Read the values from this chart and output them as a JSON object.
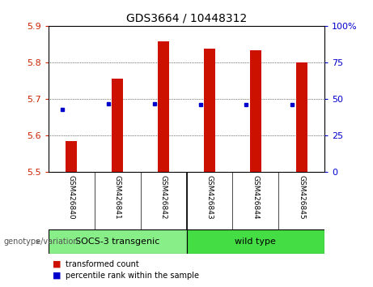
{
  "title": "GDS3664 / 10448312",
  "samples": [
    "GSM426840",
    "GSM426841",
    "GSM426842",
    "GSM426843",
    "GSM426844",
    "GSM426845"
  ],
  "transformed_counts": [
    5.585,
    5.755,
    5.858,
    5.838,
    5.834,
    5.8
  ],
  "percentile_ranks": [
    43,
    47,
    47,
    46,
    46,
    46
  ],
  "y_min": 5.5,
  "y_max": 5.9,
  "y_ticks": [
    5.5,
    5.6,
    5.7,
    5.8,
    5.9
  ],
  "right_y_ticks": [
    0,
    25,
    50,
    75,
    100
  ],
  "right_y_tick_positions": [
    5.5,
    5.6,
    5.7,
    5.8,
    5.9
  ],
  "bar_color": "#cc1100",
  "dot_color": "#0000cc",
  "bar_bottom": 5.5,
  "group_0_label": "SOCS-3 transgenic",
  "group_1_label": "wild type",
  "group_0_color": "#88ee88",
  "group_1_color": "#44dd44",
  "group_label": "genotype/variation",
  "legend_items": [
    {
      "color": "#cc1100",
      "label": "transformed count"
    },
    {
      "color": "#0000cc",
      "label": "percentile rank within the sample"
    }
  ],
  "background_color": "#ffffff",
  "tick_label_color_left": "#cc2200",
  "tick_label_color_right": "#0000cc",
  "bar_width": 0.25,
  "sample_box_color": "#cccccc"
}
